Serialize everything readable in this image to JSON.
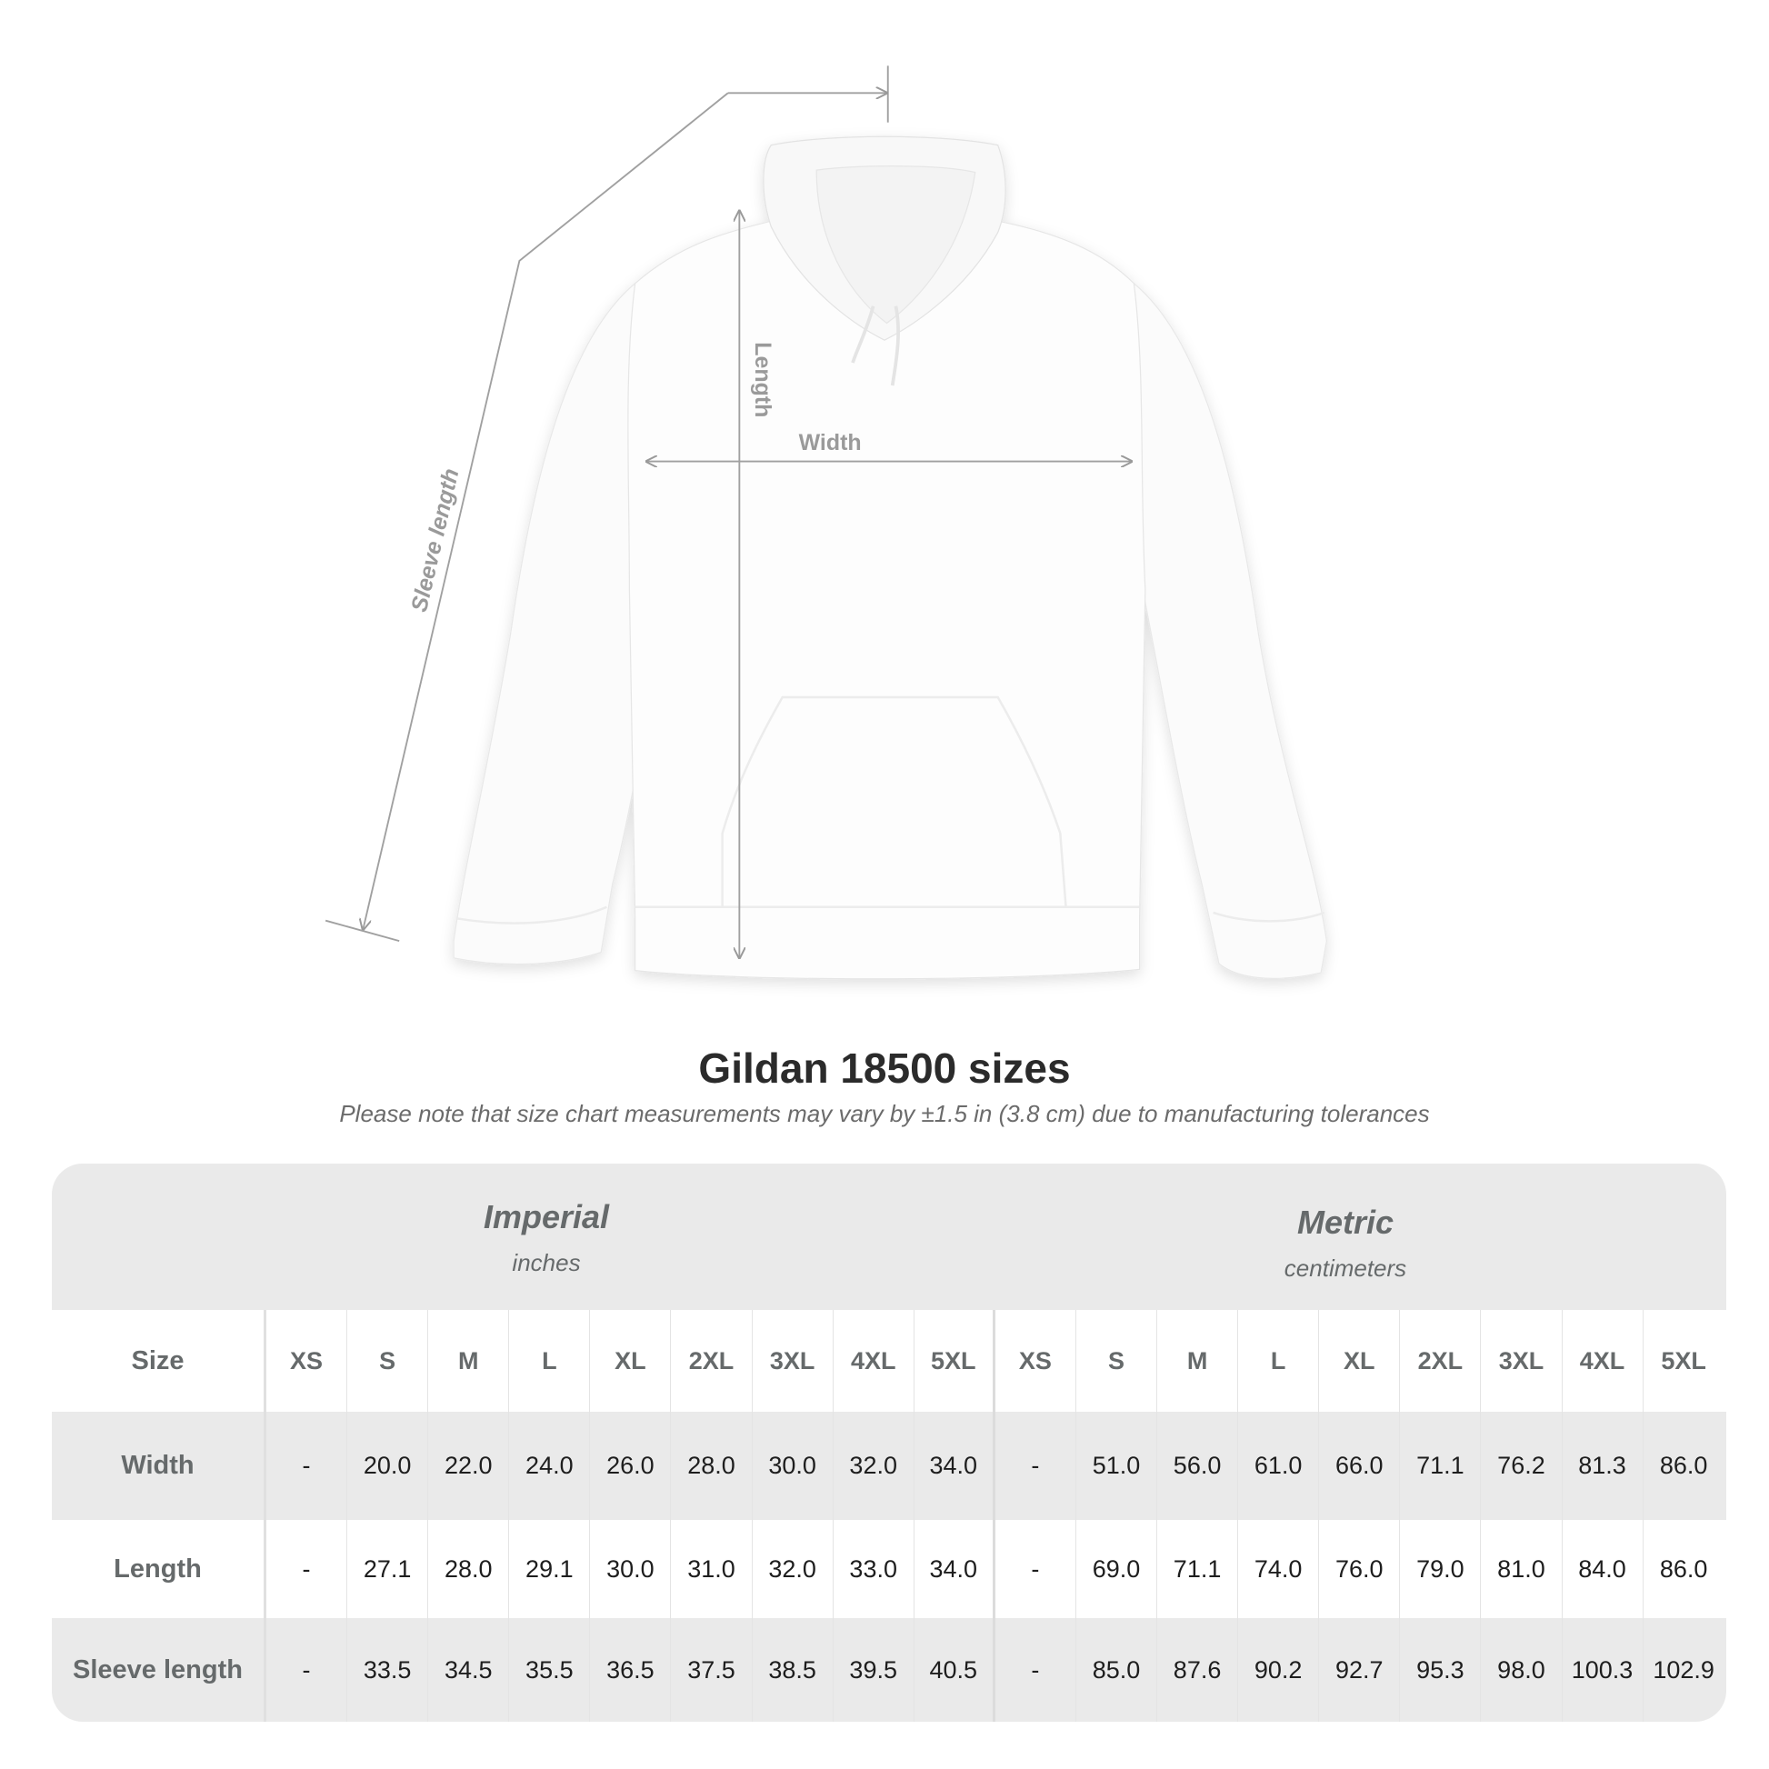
{
  "diagram": {
    "labels": {
      "sleeve": "Sleeve length",
      "length": "Length",
      "width": "Width"
    },
    "garment_color": "#ffffff"
  },
  "title": "Gildan 18500 sizes",
  "subtitle": "Please note that size chart measurements may vary by ±1.5 in (3.8 cm) due to manufacturing tolerances",
  "table": {
    "imperial": {
      "name": "Imperial",
      "unit": "inches"
    },
    "metric": {
      "name": "Metric",
      "unit": "centimeters"
    },
    "size_label": "Size",
    "sizes": [
      "XS",
      "S",
      "M",
      "L",
      "XL",
      "2XL",
      "3XL",
      "4XL",
      "5XL"
    ],
    "rows": [
      {
        "label": "Width",
        "imperial": [
          "-",
          "20.0",
          "22.0",
          "24.0",
          "26.0",
          "28.0",
          "30.0",
          "32.0",
          "34.0"
        ],
        "metric": [
          "-",
          "51.0",
          "56.0",
          "61.0",
          "66.0",
          "71.1",
          "76.2",
          "81.3",
          "86.0"
        ]
      },
      {
        "label": "Length",
        "imperial": [
          "-",
          "27.1",
          "28.0",
          "29.1",
          "30.0",
          "31.0",
          "32.0",
          "33.0",
          "34.0"
        ],
        "metric": [
          "-",
          "69.0",
          "71.1",
          "74.0",
          "76.0",
          "79.0",
          "81.0",
          "84.0",
          "86.0"
        ]
      },
      {
        "label": "Sleeve length",
        "imperial": [
          "-",
          "33.5",
          "34.5",
          "35.5",
          "36.5",
          "37.5",
          "38.5",
          "39.5",
          "40.5"
        ],
        "metric": [
          "-",
          "85.0",
          "87.6",
          "90.2",
          "92.7",
          "95.3",
          "98.0",
          "100.3",
          "102.9"
        ]
      }
    ],
    "colors": {
      "header_bg": "#eaeaea",
      "label_text": "#666a6b",
      "value_text": "#1e1e1e"
    }
  }
}
